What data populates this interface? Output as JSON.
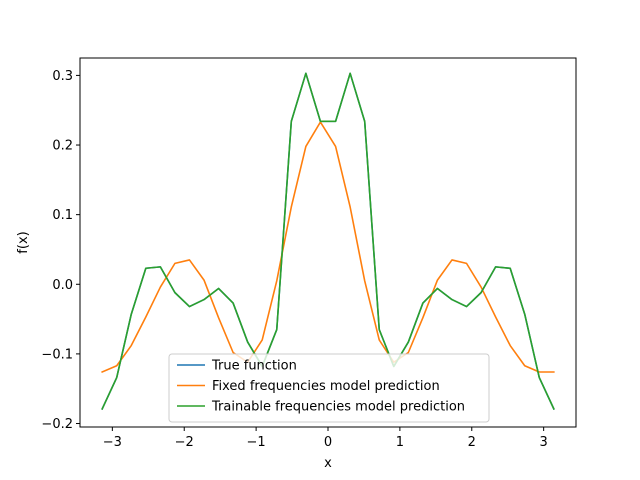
{
  "chart_data": {
    "type": "line",
    "title": "",
    "xlabel": "x",
    "ylabel": "f(x)",
    "xlim": [
      -3.45,
      3.45
    ],
    "ylim": [
      -0.205,
      0.325
    ],
    "xticks": [
      -3,
      -2,
      -1,
      0,
      1,
      2,
      3
    ],
    "xtick_labels": [
      "−3",
      "−2",
      "−1",
      "0",
      "1",
      "2",
      "3"
    ],
    "yticks": [
      -0.2,
      -0.1,
      0.0,
      0.1,
      0.2,
      0.3
    ],
    "ytick_labels": [
      "−0.2",
      "−0.1",
      "0.0",
      "0.1",
      "0.2",
      "0.3"
    ],
    "grid": false,
    "legend_position": "bottom-center",
    "x": [
      -3.1416,
      -2.9392,
      -2.7368,
      -2.5344,
      -2.332,
      -2.1296,
      -1.9272,
      -1.7248,
      -1.5224,
      -1.32,
      -1.1176,
      -0.9152,
      -0.7128,
      -0.5104,
      -0.308,
      -0.1056,
      0.1056,
      0.308,
      0.5104,
      0.7128,
      0.9152,
      1.1176,
      1.32,
      1.5224,
      1.7248,
      1.9272,
      2.1296,
      2.332,
      2.5344,
      2.7368,
      2.9392,
      3.1416
    ],
    "series": [
      {
        "name": "True function",
        "color": "#1f77b4",
        "values": [
          -0.179,
          -0.134,
          -0.043,
          0.023,
          0.025,
          -0.012,
          -0.032,
          -0.022,
          -0.006,
          -0.027,
          -0.083,
          -0.118,
          -0.065,
          0.234,
          0.303,
          0.234,
          0.234,
          0.303,
          0.234,
          -0.065,
          -0.118,
          -0.083,
          -0.027,
          -0.006,
          -0.022,
          -0.032,
          -0.012,
          0.025,
          0.023,
          -0.043,
          -0.134,
          -0.179
        ]
      },
      {
        "name": "Fixed frequencies model prediction",
        "color": "#ff7f0e",
        "values": [
          -0.126,
          -0.117,
          -0.088,
          -0.047,
          -0.004,
          0.03,
          0.035,
          0.006,
          -0.048,
          -0.098,
          -0.112,
          -0.08,
          0.005,
          0.111,
          0.198,
          0.233,
          0.198,
          0.111,
          0.005,
          -0.08,
          -0.112,
          -0.098,
          -0.048,
          0.006,
          0.035,
          0.03,
          -0.004,
          -0.047,
          -0.088,
          -0.117,
          -0.126,
          -0.126
        ]
      },
      {
        "name": "Trainable frequencies model prediction",
        "color": "#2ca02c",
        "values": [
          -0.179,
          -0.134,
          -0.043,
          0.023,
          0.025,
          -0.012,
          -0.032,
          -0.022,
          -0.006,
          -0.027,
          -0.083,
          -0.118,
          -0.065,
          0.234,
          0.303,
          0.234,
          0.234,
          0.303,
          0.234,
          -0.065,
          -0.118,
          -0.083,
          -0.027,
          -0.006,
          -0.022,
          -0.032,
          -0.012,
          0.025,
          0.023,
          -0.043,
          -0.134,
          -0.179
        ]
      }
    ]
  }
}
